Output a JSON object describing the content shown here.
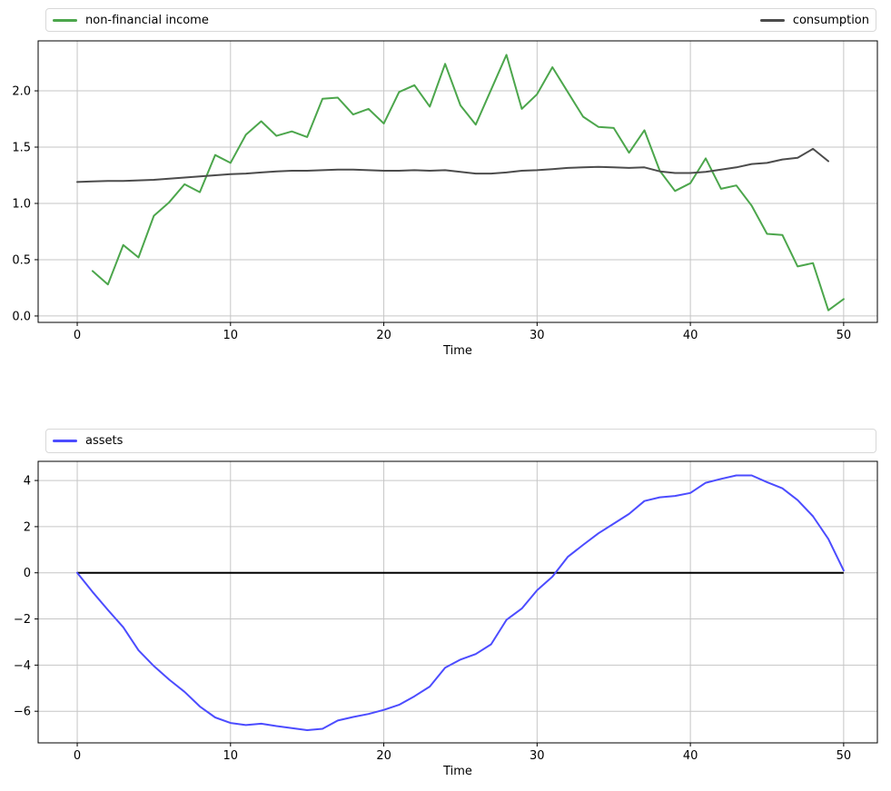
{
  "ui": {
    "background": "#ffffff",
    "grid_color": "#c6c6c6",
    "spine_color": "#000000",
    "text_color": "#000000"
  },
  "chart_data": [
    {
      "type": "line",
      "title": "",
      "xlabel": "Time",
      "ylabel": "",
      "grid": true,
      "legend_position": "top-expand",
      "xlim": [
        -2.55,
        52.2
      ],
      "ylim": [
        -0.057,
        2.444
      ],
      "x_ticks": [
        0,
        10,
        20,
        30,
        40,
        50
      ],
      "x_tick_labels": [
        "0",
        "10",
        "20",
        "30",
        "40",
        "50"
      ],
      "y_ticks": [
        0.0,
        0.5,
        1.0,
        1.5,
        2.0
      ],
      "y_tick_labels": [
        "0.0",
        "0.5",
        "1.0",
        "1.5",
        "2.0"
      ],
      "series": [
        {
          "name": "non-financial income",
          "color": "#4CA64C",
          "width": 2,
          "x": [
            1,
            2,
            3,
            4,
            5,
            6,
            7,
            8,
            9,
            10,
            11,
            12,
            13,
            14,
            15,
            16,
            17,
            18,
            19,
            20,
            21,
            22,
            23,
            24,
            25,
            26,
            27,
            28,
            29,
            30,
            31,
            32,
            33,
            34,
            35,
            36,
            37,
            38,
            39,
            40,
            41,
            42,
            43,
            44,
            45,
            46,
            47,
            48,
            49,
            50
          ],
          "values": [
            0.4,
            0.28,
            0.63,
            0.52,
            0.89,
            1.01,
            1.17,
            1.1,
            1.43,
            1.36,
            1.61,
            1.73,
            1.6,
            1.64,
            1.59,
            1.93,
            1.94,
            1.79,
            1.84,
            1.71,
            1.99,
            2.05,
            1.86,
            2.24,
            1.87,
            1.7,
            2.01,
            2.32,
            1.84,
            1.97,
            2.21,
            1.99,
            1.77,
            1.68,
            1.67,
            1.45,
            1.65,
            1.29,
            1.11,
            1.18,
            1.4,
            1.13,
            1.16,
            0.98,
            0.73,
            0.72,
            0.44,
            0.47,
            0.05,
            0.15
          ]
        },
        {
          "name": "consumption",
          "color": "#4C4C4C",
          "width": 2,
          "x": [
            0,
            1,
            2,
            3,
            4,
            5,
            6,
            7,
            8,
            9,
            10,
            11,
            12,
            13,
            14,
            15,
            16,
            17,
            18,
            19,
            20,
            21,
            22,
            23,
            24,
            25,
            26,
            27,
            28,
            29,
            30,
            31,
            32,
            33,
            34,
            35,
            36,
            37,
            38,
            39,
            40,
            41,
            42,
            43,
            44,
            45,
            46,
            47,
            48,
            49
          ],
          "values": [
            1.19,
            1.195,
            1.2,
            1.2,
            1.205,
            1.21,
            1.22,
            1.23,
            1.24,
            1.25,
            1.26,
            1.265,
            1.275,
            1.285,
            1.29,
            1.29,
            1.295,
            1.3,
            1.3,
            1.295,
            1.29,
            1.29,
            1.295,
            1.29,
            1.295,
            1.28,
            1.265,
            1.265,
            1.275,
            1.29,
            1.295,
            1.305,
            1.315,
            1.32,
            1.325,
            1.32,
            1.315,
            1.32,
            1.285,
            1.27,
            1.27,
            1.28,
            1.3,
            1.32,
            1.35,
            1.36,
            1.39,
            1.405,
            1.485,
            1.375
          ]
        }
      ]
    },
    {
      "type": "line",
      "title": "",
      "xlabel": "Time",
      "ylabel": "",
      "grid": true,
      "legend_position": "top-expand",
      "xlim": [
        -2.55,
        52.2
      ],
      "ylim": [
        -7.37,
        4.83
      ],
      "x_ticks": [
        0,
        10,
        20,
        30,
        40,
        50
      ],
      "x_tick_labels": [
        "0",
        "10",
        "20",
        "30",
        "40",
        "50"
      ],
      "y_ticks": [
        4,
        2,
        0,
        -2,
        -4,
        -6
      ],
      "y_tick_labels": [
        "4",
        "2",
        "0",
        "−2",
        "−4",
        "−6"
      ],
      "baseline": {
        "y": 0,
        "x_start": 0,
        "x_end": 50,
        "color": "#000000",
        "width": 2
      },
      "series": [
        {
          "name": "assets",
          "color": "#4C4CFF",
          "width": 2,
          "x": [
            0,
            1,
            2,
            3,
            4,
            5,
            6,
            7,
            8,
            9,
            10,
            11,
            12,
            13,
            14,
            15,
            16,
            17,
            18,
            19,
            20,
            21,
            22,
            23,
            24,
            25,
            26,
            27,
            28,
            29,
            30,
            31,
            32,
            33,
            34,
            35,
            36,
            37,
            38,
            39,
            40,
            41,
            42,
            43,
            44,
            45,
            46,
            47,
            48,
            49,
            50
          ],
          "values": [
            0.0,
            -0.83,
            -1.61,
            -2.36,
            -3.36,
            -4.04,
            -4.63,
            -5.16,
            -5.79,
            -6.27,
            -6.51,
            -6.6,
            -6.54,
            -6.64,
            -6.73,
            -6.82,
            -6.76,
            -6.4,
            -6.25,
            -6.12,
            -5.94,
            -5.72,
            -5.35,
            -4.93,
            -4.11,
            -3.76,
            -3.52,
            -3.1,
            -2.04,
            -1.55,
            -0.76,
            -0.17,
            0.69,
            1.21,
            1.71,
            2.13,
            2.55,
            3.11,
            3.27,
            3.33,
            3.46,
            3.9,
            4.07,
            4.22,
            4.22,
            3.93,
            3.66,
            3.15,
            2.45,
            1.47,
            0.1
          ]
        }
      ]
    }
  ]
}
